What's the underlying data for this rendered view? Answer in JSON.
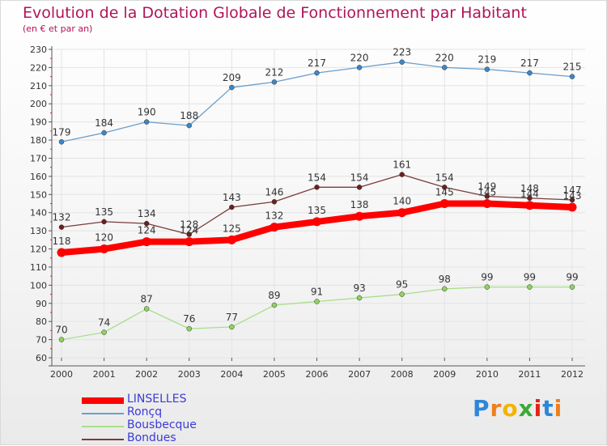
{
  "title": "Evolution de la Dotation Globale de Fonctionnement par Habitant",
  "subtitle": "(en € et par an)",
  "logo_text": "Proxiti",
  "colors": {
    "title": "#b0145a",
    "legend_text": "#3b3bd6",
    "axis": "#555555",
    "grid": "#e3e3e3"
  },
  "chart_data": {
    "type": "line",
    "title": "Evolution de la Dotation Globale de Fonctionnement par Habitant",
    "subtitle": "(en € et par an)",
    "xlabel": "",
    "ylabel": "",
    "x": [
      "2000",
      "2001",
      "2002",
      "2003",
      "2004",
      "2005",
      "2006",
      "2007",
      "2008",
      "2009",
      "2010",
      "2011",
      "2012"
    ],
    "ylim": [
      60,
      230
    ],
    "yticks": [
      60,
      70,
      80,
      90,
      100,
      110,
      120,
      130,
      140,
      150,
      160,
      170,
      180,
      190,
      200,
      210,
      220,
      230
    ],
    "grid": true,
    "legend_position": "bottom-left",
    "series": [
      {
        "name": "Ronçq",
        "color": "#6a9ecb",
        "point_color": "#3d86c6",
        "width": 1.3,
        "values": [
          179,
          184,
          190,
          188,
          209,
          212,
          217,
          220,
          223,
          220,
          219,
          217,
          215
        ]
      },
      {
        "name": "Bousbecque",
        "color": "#a9de8a",
        "point_color": "#8fd25e",
        "width": 1.3,
        "values": [
          70,
          74,
          87,
          76,
          77,
          89,
          91,
          93,
          95,
          98,
          99,
          99,
          99
        ]
      },
      {
        "name": "Bondues",
        "color": "#7a3b3b",
        "point_color": "#6b2020",
        "width": 1.3,
        "values": [
          132,
          135,
          134,
          128,
          143,
          146,
          154,
          154,
          161,
          154,
          149,
          148,
          147
        ]
      },
      {
        "name": "LINSELLES",
        "color": "#ff0000",
        "point_color": "#ff0000",
        "width": 8,
        "values": [
          118,
          120,
          124,
          124,
          125,
          132,
          135,
          138,
          140,
          145,
          145,
          144,
          143
        ]
      }
    ],
    "legend": [
      {
        "name": "LINSELLES",
        "color": "#ff0000",
        "width": 8
      },
      {
        "name": "Ronçq",
        "color": "#6a9ecb",
        "width": 2
      },
      {
        "name": "Bousbecque",
        "color": "#a9de8a",
        "width": 2
      },
      {
        "name": "Bondues",
        "color": "#7a3b3b",
        "width": 2
      }
    ]
  }
}
